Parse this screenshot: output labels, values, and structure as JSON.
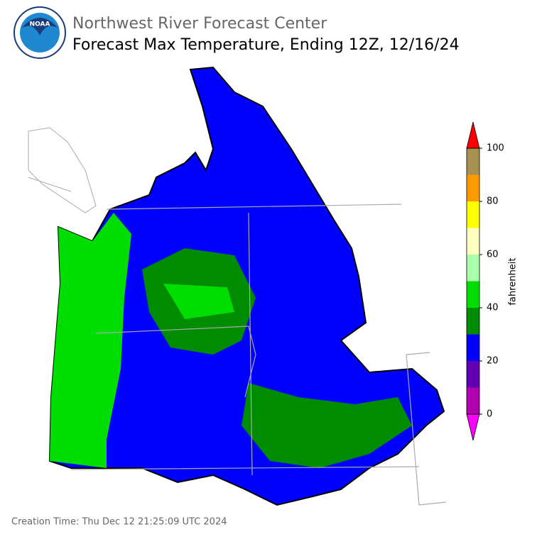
{
  "header": {
    "logo_text": "NOAA",
    "agency": "Northwest River Forecast Center",
    "title": "Forecast Max Temperature, Ending 12Z, 12/16/24"
  },
  "colorbar": {
    "label": "fahrenheit",
    "bounds": [
      0,
      10,
      20,
      30,
      40,
      50,
      60,
      70,
      80,
      90,
      100
    ],
    "colors": [
      "#b000b0",
      "#6000b0",
      "#0000ff",
      "#008c00",
      "#00dd00",
      "#aaffaa",
      "#ffffc0",
      "#ffff00",
      "#ff9900",
      "#a89050"
    ],
    "under_color": "#ff00ff",
    "over_color": "#ff0000",
    "ticks": [
      0,
      20,
      40,
      60,
      80,
      100
    ]
  },
  "footer": {
    "creation_time": "Creation Time: Thu Dec 12 21:25:09 UTC 2024"
  }
}
